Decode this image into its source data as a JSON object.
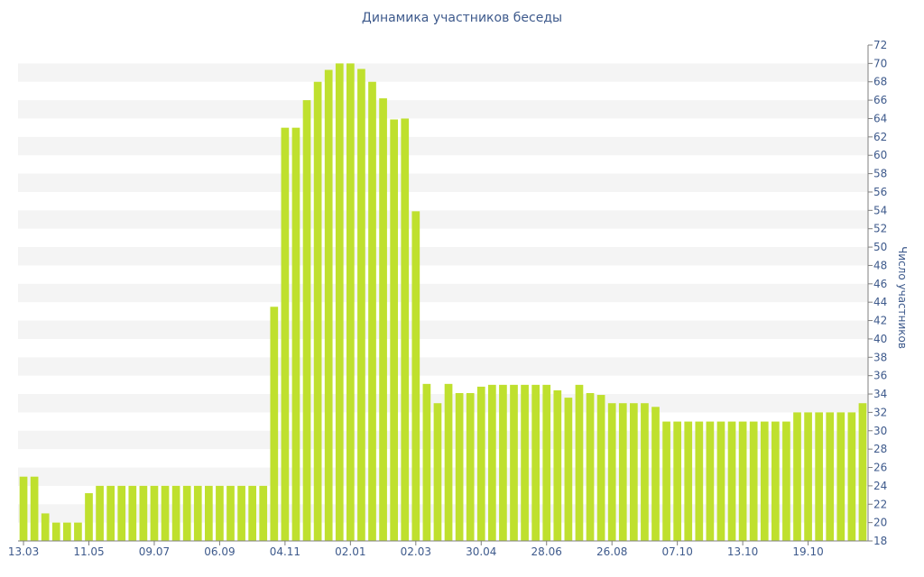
{
  "chart_data": {
    "type": "bar",
    "title": "Динамика участников беседы",
    "xlabel": "",
    "ylabel": "Число участников",
    "ylim": [
      18,
      72
    ],
    "y_ticks": [
      18,
      20,
      22,
      24,
      26,
      28,
      30,
      32,
      34,
      36,
      38,
      40,
      42,
      44,
      46,
      48,
      50,
      52,
      54,
      56,
      58,
      60,
      62,
      64,
      66,
      68,
      70,
      72
    ],
    "y_axis_side": "right",
    "x_tick_labels": [
      {
        "index": 0,
        "label": "13.03"
      },
      {
        "index": 6,
        "label": "11.05"
      },
      {
        "index": 12,
        "label": "09.07"
      },
      {
        "index": 18,
        "label": "06.09"
      },
      {
        "index": 24,
        "label": "04.11"
      },
      {
        "index": 30,
        "label": "02.01"
      },
      {
        "index": 36,
        "label": "02.03"
      },
      {
        "index": 42,
        "label": "30.04"
      },
      {
        "index": 48,
        "label": "28.06"
      },
      {
        "index": 54,
        "label": "26.08"
      },
      {
        "index": 60,
        "label": "07.10"
      },
      {
        "index": 66,
        "label": "13.10"
      },
      {
        "index": 72,
        "label": "19.10"
      }
    ],
    "values": [
      25,
      25,
      21,
      20,
      20,
      20,
      23.2,
      24,
      24,
      24,
      24,
      24,
      24,
      24,
      24,
      24,
      24,
      24,
      24,
      24,
      24,
      24,
      24,
      43.5,
      63,
      63,
      66,
      68,
      69.3,
      70,
      70,
      69.4,
      68,
      66.2,
      63.9,
      64,
      53.9,
      35.1,
      33,
      35.1,
      34.1,
      34.1,
      34.8,
      35,
      35,
      35,
      35,
      35,
      35,
      34.4,
      33.6,
      35,
      34.1,
      33.9,
      33,
      33,
      33,
      33,
      32.6,
      31,
      31,
      31,
      31,
      31,
      31,
      31,
      31,
      31,
      31,
      31,
      31,
      32,
      32,
      32,
      32,
      32,
      32,
      33
    ],
    "bar_color": "#bfe02e",
    "band_color": "#f4f4f4",
    "grid": "alternating horizontal bands",
    "legend": "none"
  }
}
